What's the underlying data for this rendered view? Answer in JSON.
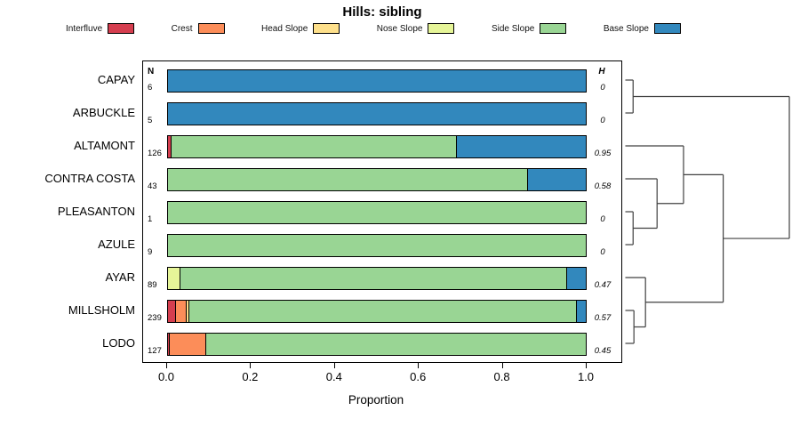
{
  "chart_data": {
    "type": "bar",
    "stacked": true,
    "orientation": "horizontal",
    "title": "Hills: sibling",
    "xlabel": "Proportion",
    "xlim": [
      0,
      1
    ],
    "xticks": [
      "0.0",
      "0.2",
      "0.4",
      "0.6",
      "0.8",
      "1.0"
    ],
    "n_header": "N",
    "h_header": "H",
    "legend": [
      {
        "label": "Interfluve",
        "color": "#d53e4f"
      },
      {
        "label": "Crest",
        "color": "#fc8d59"
      },
      {
        "label": "Head Slope",
        "color": "#fee08b"
      },
      {
        "label": "Nose Slope",
        "color": "#e6f598"
      },
      {
        "label": "Side Slope",
        "color": "#99d594"
      },
      {
        "label": "Base Slope",
        "color": "#3288bd"
      }
    ],
    "rows": [
      {
        "label": "CAPAY",
        "n": 6,
        "h": "0",
        "segments": [
          0,
          0,
          0,
          0,
          0,
          1.0
        ]
      },
      {
        "label": "ARBUCKLE",
        "n": 5,
        "h": "0",
        "segments": [
          0,
          0,
          0,
          0,
          0,
          1.0
        ]
      },
      {
        "label": "ALTAMONT",
        "n": 126,
        "h": "0.95",
        "segments": [
          0.01,
          0,
          0,
          0,
          0.68,
          0.31
        ]
      },
      {
        "label": "CONTRA COSTA",
        "n": 43,
        "h": "0.58",
        "segments": [
          0,
          0,
          0,
          0,
          0.86,
          0.14
        ]
      },
      {
        "label": "PLEASANTON",
        "n": 1,
        "h": "0",
        "segments": [
          0,
          0,
          0,
          0,
          1.0,
          0
        ]
      },
      {
        "label": "AZULE",
        "n": 9,
        "h": "0",
        "segments": [
          0,
          0,
          0,
          0,
          1.0,
          0
        ]
      },
      {
        "label": "AYAR",
        "n": 89,
        "h": "0.47",
        "segments": [
          0,
          0,
          0,
          0.032,
          0.921,
          0.047
        ]
      },
      {
        "label": "MILLSHOLM",
        "n": 239,
        "h": "0.57",
        "segments": [
          0.021,
          0.025,
          0.008,
          0,
          0.923,
          0.023
        ]
      },
      {
        "label": "LODO",
        "n": 127,
        "h": "0.45",
        "segments": [
          0.006,
          0.087,
          0,
          0,
          0.907,
          0
        ]
      }
    ],
    "dendrogram": {
      "height": 1.0,
      "children": [
        {
          "height": 0.055,
          "children": [
            {
              "leaf": "CAPAY"
            },
            {
              "leaf": "ARBUCKLE"
            }
          ]
        },
        {
          "height": 0.6,
          "children": [
            {
              "height": 0.36,
              "children": [
                {
                  "leaf": "ALTAMONT"
                },
                {
                  "height": 0.2,
                  "children": [
                    {
                      "leaf": "CONTRA COSTA"
                    },
                    {
                      "height": 0.055,
                      "children": [
                        {
                          "leaf": "PLEASANTON"
                        },
                        {
                          "leaf": "AZULE"
                        }
                      ]
                    }
                  ]
                }
              ]
            },
            {
              "height": 0.13,
              "children": [
                {
                  "leaf": "AYAR"
                },
                {
                  "height": 0.06,
                  "children": [
                    {
                      "leaf": "MILLSHOLM"
                    },
                    {
                      "leaf": "LODO"
                    }
                  ]
                }
              ]
            }
          ]
        }
      ]
    }
  }
}
